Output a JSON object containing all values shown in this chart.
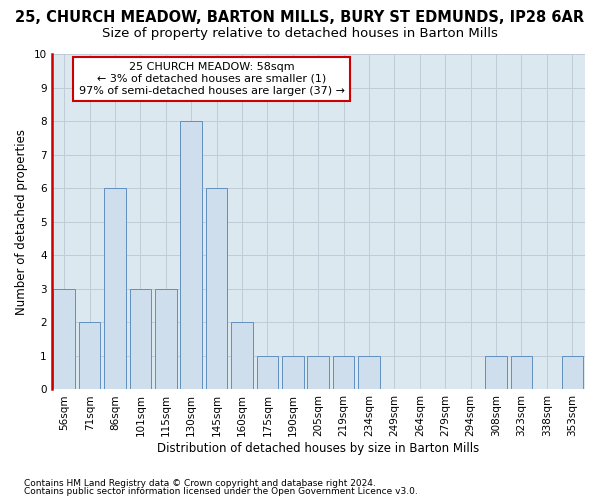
{
  "title1": "25, CHURCH MEADOW, BARTON MILLS, BURY ST EDMUNDS, IP28 6AR",
  "title2": "Size of property relative to detached houses in Barton Mills",
  "xlabel": "Distribution of detached houses by size in Barton Mills",
  "ylabel": "Number of detached properties",
  "categories": [
    "56sqm",
    "71sqm",
    "86sqm",
    "101sqm",
    "115sqm",
    "130sqm",
    "145sqm",
    "160sqm",
    "175sqm",
    "190sqm",
    "205sqm",
    "219sqm",
    "234sqm",
    "249sqm",
    "264sqm",
    "279sqm",
    "294sqm",
    "308sqm",
    "323sqm",
    "338sqm",
    "353sqm"
  ],
  "values": [
    3,
    2,
    6,
    3,
    3,
    8,
    6,
    2,
    1,
    1,
    1,
    1,
    1,
    0,
    0,
    0,
    0,
    1,
    1,
    0,
    1
  ],
  "bar_color": "#cfdeed",
  "bar_edge_color": "#6090c0",
  "annotation_line1": "25 CHURCH MEADOW: 58sqm",
  "annotation_line2": "← 3% of detached houses are smaller (1)",
  "annotation_line3": "97% of semi-detached houses are larger (37) →",
  "annotation_box_facecolor": "#ffffff",
  "annotation_box_edgecolor": "#cc0000",
  "red_spine_color": "#cc0000",
  "ylim_max": 10,
  "yticks": [
    0,
    1,
    2,
    3,
    4,
    5,
    6,
    7,
    8,
    9,
    10
  ],
  "plot_bg_color": "#dce8f0",
  "grid_color": "#c0ccd8",
  "footnote1": "Contains HM Land Registry data © Crown copyright and database right 2024.",
  "footnote2": "Contains public sector information licensed under the Open Government Licence v3.0.",
  "title1_fontsize": 10.5,
  "title2_fontsize": 9.5,
  "ylabel_fontsize": 8.5,
  "xlabel_fontsize": 8.5,
  "tick_fontsize": 7.5,
  "annotation_fontsize": 8,
  "footnote_fontsize": 6.5
}
